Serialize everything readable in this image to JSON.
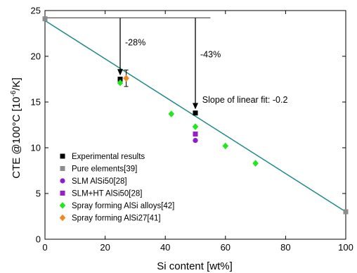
{
  "chart_data": {
    "type": "scatter",
    "xlabel": "Si content [wt%]",
    "ylabel_main": "CTE @100°C [10",
    "ylabel_exp": "-6",
    "ylabel_end": "/K]",
    "xlim": [
      0,
      100
    ],
    "ylim": [
      0,
      25
    ],
    "xticks": [
      0,
      20,
      40,
      60,
      80,
      100
    ],
    "yticks": [
      0,
      5,
      10,
      15,
      20,
      25
    ],
    "grid": false,
    "legend_position": "lower-left",
    "fit_line": {
      "x": [
        0,
        100
      ],
      "y": [
        23.9,
        3.0
      ],
      "color": "#1f8a8a"
    },
    "series": [
      {
        "name": "Experimental results",
        "marker": "square",
        "color": "#000000",
        "points": [
          {
            "x": 25,
            "y": 17.5
          },
          {
            "x": 50,
            "y": 13.8
          }
        ]
      },
      {
        "name": "Pure elements[39]",
        "marker": "square",
        "color": "#8c8c8c",
        "points": [
          {
            "x": 0,
            "y": 24.1
          },
          {
            "x": 100,
            "y": 3.0
          }
        ]
      },
      {
        "name": "SLM AlSi50[28]",
        "marker": "circle",
        "color": "#8a1ec8",
        "points": [
          {
            "x": 50,
            "y": 10.8
          }
        ]
      },
      {
        "name": "SLM+HT AlSi50[28]",
        "marker": "square",
        "color": "#9a1ec8",
        "points": [
          {
            "x": 50,
            "y": 11.5
          }
        ]
      },
      {
        "name": "Spray forming AlSi alloys[42]",
        "marker": "diamond",
        "color": "#22e61e",
        "points": [
          {
            "x": 25,
            "y": 17.1
          },
          {
            "x": 42,
            "y": 13.7
          },
          {
            "x": 50,
            "y": 12.3
          },
          {
            "x": 60,
            "y": 10.2
          },
          {
            "x": 70,
            "y": 8.3
          }
        ]
      },
      {
        "name": "Spray forming AlSi27[41]",
        "marker": "diamond",
        "color": "#f08a1e",
        "points": [
          {
            "x": 27,
            "y": 17.6,
            "err": 0.9
          }
        ]
      }
    ],
    "reference_line": {
      "x": [
        0,
        55
      ],
      "y": 24.2
    },
    "arrows": [
      {
        "x": 25,
        "y_from": 24.2,
        "y_to": 17.9,
        "label": "-28%"
      },
      {
        "x": 50,
        "y_from": 24.2,
        "y_to": 14.2,
        "label": "-43%"
      }
    ],
    "annotations": [
      {
        "text": "Slope of linear fit: -0.2",
        "x": 60,
        "y": 15.3
      }
    ]
  }
}
